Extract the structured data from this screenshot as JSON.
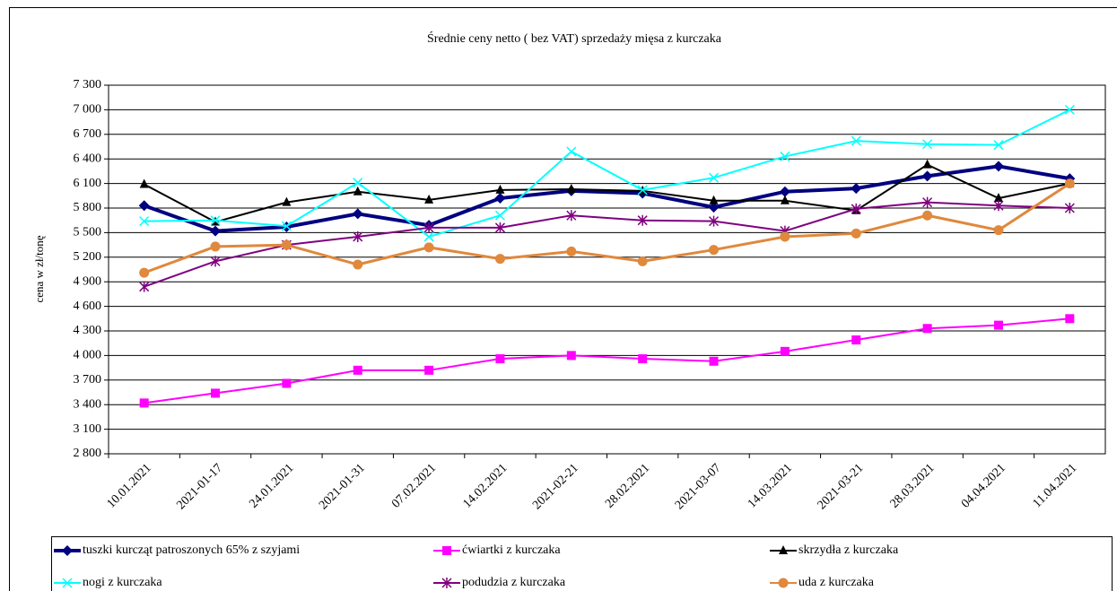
{
  "chart_data": {
    "type": "line",
    "title": "Średnie ceny netto ( bez VAT) sprzedaży mięsa z kurczaka",
    "y_label": "cena w zł/tonę",
    "categories": [
      "10.01.2021",
      "2021-01-17",
      "24.01.2021",
      "2021-01-31",
      "07.02.2021",
      "14.02.2021",
      "2021-02-21",
      "28.02.2021",
      "2021-03-07",
      "14.03.2021",
      "2021-03-21",
      "28.03.2021",
      "04.04.2021",
      "11.04.2021"
    ],
    "series": [
      {
        "name": "tuszki kurcząt patroszonych 65% z szyjami",
        "color": "#000080",
        "marker": "diamond",
        "values": [
          5830,
          5520,
          5570,
          5730,
          5590,
          5920,
          6010,
          5980,
          5810,
          6000,
          6040,
          6190,
          6310,
          6160
        ]
      },
      {
        "name": "ćwiartki z kurczaka",
        "color": "#ff00ff",
        "marker": "square",
        "values": [
          3420,
          3540,
          3660,
          3820,
          3820,
          3960,
          4000,
          3960,
          3930,
          4050,
          4190,
          4330,
          4370,
          4450
        ]
      },
      {
        "name": "skrzydła z kurczaka",
        "color": "#000000",
        "marker": "triangle",
        "values": [
          6090,
          5630,
          5870,
          6000,
          5900,
          6020,
          6030,
          6010,
          5890,
          5890,
          5770,
          6330,
          5920,
          6100
        ]
      },
      {
        "name": "nogi z kurczaka",
        "color": "#00ffff",
        "marker": "x",
        "values": [
          5640,
          5650,
          5580,
          6110,
          5450,
          5710,
          6490,
          6020,
          6170,
          6430,
          6620,
          6580,
          6570,
          7000
        ]
      },
      {
        "name": "podudzia z kurczaka",
        "color": "#800080",
        "marker": "star",
        "values": [
          4840,
          5150,
          5350,
          5450,
          5560,
          5560,
          5710,
          5650,
          5640,
          5520,
          5790,
          5870,
          5830,
          5800
        ]
      },
      {
        "name": "uda z kurczaka",
        "color": "#e0883c",
        "marker": "circle",
        "values": [
          5010,
          5330,
          5350,
          5110,
          5320,
          5180,
          5270,
          5150,
          5290,
          5450,
          5490,
          5710,
          5530,
          6100
        ]
      }
    ],
    "ylim": [
      2800,
      7300
    ],
    "yticks": [
      {
        "value": 2800,
        "label": "2 800"
      },
      {
        "value": 3100,
        "label": "3 100"
      },
      {
        "value": 3400,
        "label": "3 400"
      },
      {
        "value": 3700,
        "label": "3 700"
      },
      {
        "value": 4000,
        "label": "4 000"
      },
      {
        "value": 4300,
        "label": "4 300"
      },
      {
        "value": 4600,
        "label": "4 600"
      },
      {
        "value": 4900,
        "label": "4 900"
      },
      {
        "value": 5200,
        "label": "5 200"
      },
      {
        "value": 5500,
        "label": "5 500"
      },
      {
        "value": 5800,
        "label": "5 800"
      },
      {
        "value": 6100,
        "label": "6 100"
      },
      {
        "value": 6400,
        "label": "6 400"
      },
      {
        "value": 6700,
        "label": "6 700"
      },
      {
        "value": 7000,
        "label": "7 000"
      },
      {
        "value": 7300,
        "label": "7 300"
      }
    ],
    "grid": true
  }
}
